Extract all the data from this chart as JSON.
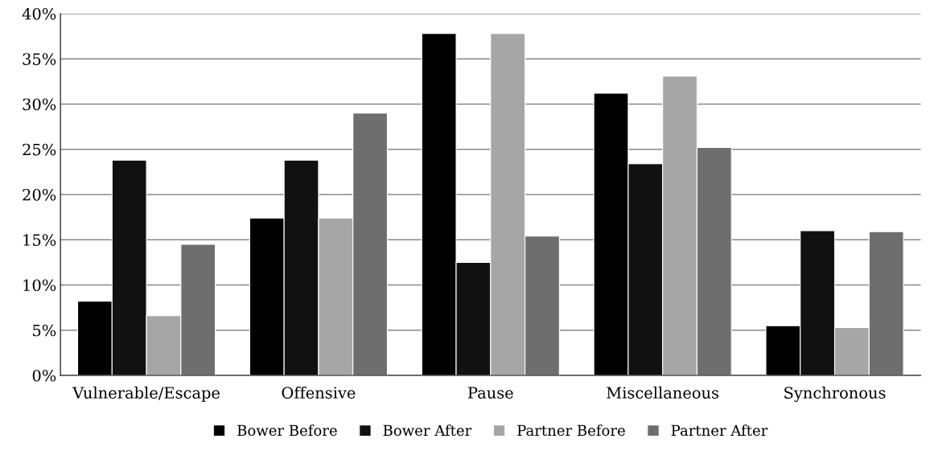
{
  "chart_data": {
    "type": "bar",
    "categories": [
      "Vulnerable/Escape",
      "Offensive",
      "Pause",
      "Miscellaneous",
      "Synchronous"
    ],
    "series": [
      {
        "name": "Bower Before",
        "color": "#000000",
        "values": [
          8.2,
          17.4,
          37.8,
          31.2,
          5.5
        ]
      },
      {
        "name": "Bower After",
        "color": "#111111",
        "values": [
          23.8,
          23.8,
          12.5,
          23.4,
          16.0
        ]
      },
      {
        "name": "Partner Before",
        "color": "#a6a6a6",
        "values": [
          6.6,
          17.4,
          37.8,
          33.1,
          5.3
        ]
      },
      {
        "name": "Partner After",
        "color": "#6e6e6e",
        "values": [
          14.5,
          29.0,
          15.4,
          25.2,
          15.9
        ]
      }
    ],
    "ylim": [
      0,
      40
    ],
    "yticks": [
      {
        "value": 0,
        "label": "0%"
      },
      {
        "value": 5,
        "label": "5%"
      },
      {
        "value": 10,
        "label": "10%"
      },
      {
        "value": 15,
        "label": "15%"
      },
      {
        "value": 20,
        "label": "20%"
      },
      {
        "value": 25,
        "label": "25%"
      },
      {
        "value": 30,
        "label": "30%"
      },
      {
        "value": 35,
        "label": "35%"
      },
      {
        "value": 40,
        "label": "40%"
      }
    ],
    "grid": "y",
    "legend": "bottom"
  }
}
